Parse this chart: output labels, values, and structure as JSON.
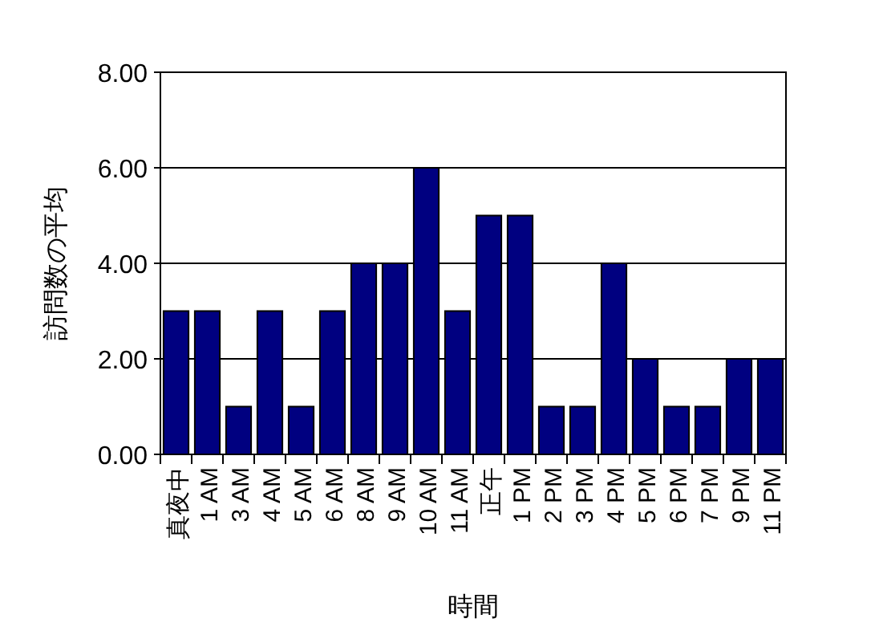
{
  "chart_data": {
    "type": "bar",
    "xlabel": "時間",
    "ylabel": "訪問数の平均",
    "categories": [
      "真夜中",
      "1 AM",
      "3 AM",
      "4 AM",
      "5 AM",
      "6 AM",
      "8 AM",
      "9 AM",
      "10 AM",
      "11 AM",
      "正午",
      "1 PM",
      "2 PM",
      "3 PM",
      "4 PM",
      "5 PM",
      "6 PM",
      "7 PM",
      "9 PM",
      "11 PM"
    ],
    "values": [
      3,
      3,
      1,
      3,
      1,
      3,
      4,
      4,
      6,
      3,
      5,
      5,
      1,
      1,
      4,
      2,
      1,
      1,
      2,
      2
    ],
    "color": "#000080",
    "ylim": [
      0,
      8
    ],
    "yticks": [
      {
        "value": 0,
        "label": "0.00"
      },
      {
        "value": 2,
        "label": "2.00"
      },
      {
        "value": 4,
        "label": "4.00"
      },
      {
        "value": 6,
        "label": "6.00"
      },
      {
        "value": 8,
        "label": "8.00"
      }
    ],
    "grid": "y"
  }
}
